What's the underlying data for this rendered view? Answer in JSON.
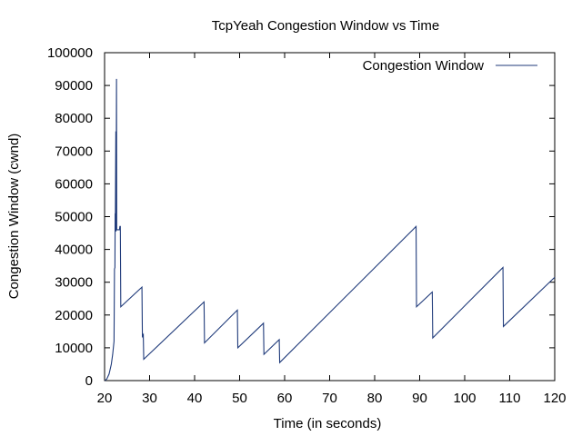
{
  "chart_data": {
    "type": "line",
    "title": "TcpYeah Congestion Window vs Time",
    "xlabel": "Time (in seconds)",
    "ylabel": "Congestion Window (cwnd)",
    "xlim": [
      20,
      120
    ],
    "ylim": [
      0,
      100000
    ],
    "xticks": [
      20,
      30,
      40,
      50,
      60,
      70,
      80,
      90,
      100,
      110,
      120
    ],
    "yticks": [
      0,
      10000,
      20000,
      30000,
      40000,
      50000,
      60000,
      70000,
      80000,
      90000,
      100000
    ],
    "legend": "top-right",
    "grid": false,
    "line_color": "#1f3a7a",
    "series": [
      {
        "name": "Congestion Window",
        "points": [
          [
            20.1,
            0
          ],
          [
            20.5,
            500
          ],
          [
            21.0,
            2000
          ],
          [
            21.5,
            5000
          ],
          [
            21.8,
            8000
          ],
          [
            22.1,
            12000
          ],
          [
            22.2,
            34000
          ],
          [
            22.3,
            34500
          ],
          [
            22.35,
            51000
          ],
          [
            22.4,
            50000
          ],
          [
            22.5,
            76000
          ],
          [
            22.55,
            45500
          ],
          [
            22.65,
            92000
          ],
          [
            22.7,
            46000
          ],
          [
            23.3,
            46000
          ],
          [
            23.4,
            47000
          ],
          [
            23.5,
            47000
          ],
          [
            23.6,
            22500
          ],
          [
            28.3,
            28500
          ],
          [
            28.4,
            13500
          ],
          [
            28.6,
            14000
          ],
          [
            28.7,
            6500
          ],
          [
            42.1,
            24000
          ],
          [
            42.2,
            11500
          ],
          [
            49.5,
            21500
          ],
          [
            49.6,
            10000
          ],
          [
            55.3,
            17500
          ],
          [
            55.4,
            8000
          ],
          [
            58.8,
            12500
          ],
          [
            58.9,
            5500
          ],
          [
            89.2,
            47000
          ],
          [
            89.3,
            22500
          ],
          [
            92.8,
            27000
          ],
          [
            92.9,
            13000
          ],
          [
            108.5,
            34500
          ],
          [
            108.6,
            16500
          ],
          [
            120,
            31500
          ]
        ]
      }
    ]
  }
}
